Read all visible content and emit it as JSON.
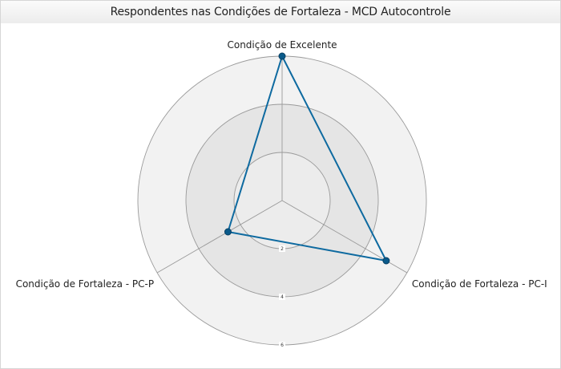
{
  "chart_data": {
    "type": "radar",
    "title": "Respondentes nas Condições de Fortaleza - MCD Autocontrole",
    "axes": [
      "Condição de Excelente",
      "Condição de Fortaleza - PC-I",
      "Condição de Fortaleza - PC-P"
    ],
    "tick_labels": [
      "2",
      "4",
      "6"
    ],
    "rlim": [
      0,
      6
    ],
    "series": [
      {
        "values": [
          6,
          5,
          2.6
        ]
      }
    ],
    "colors": {
      "line": "#0e6aa0",
      "marker": "#0a5a8a",
      "ring_outer": "#f2f2f2",
      "ring_middle": "#e5e5e5",
      "ring_inner": "#ececec",
      "gridline": "#9a9a9a"
    }
  }
}
